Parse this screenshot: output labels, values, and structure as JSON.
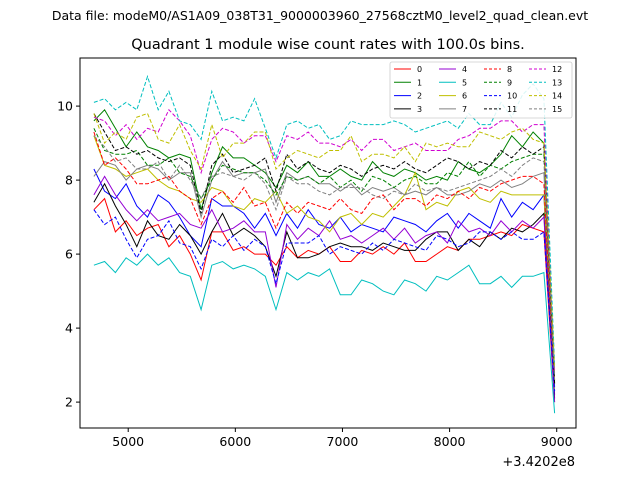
{
  "suptitle": "Data file: modeM0/AS1A09_038T31_9000003960_27568cztM0_level2_quad_clean.evt",
  "chart_data": {
    "type": "line",
    "title": "Quadrant 1 module wise count rates with 100.0s bins.",
    "xlabel": "",
    "ylabel": "",
    "x_offset_label": "+3.4202e8",
    "xlim": [
      4550,
      9180
    ],
    "ylim": [
      1.3,
      11.3
    ],
    "xticks": [
      5000,
      6000,
      7000,
      8000,
      9000
    ],
    "yticks": [
      2,
      4,
      6,
      8,
      10
    ],
    "grid": false,
    "legend_placement": "top-right",
    "x": [
      4680,
      4780,
      4880,
      4980,
      5080,
      5180,
      5280,
      5380,
      5480,
      5580,
      5680,
      5780,
      5880,
      5980,
      6080,
      6180,
      6280,
      6380,
      6480,
      6580,
      6680,
      6780,
      6880,
      6980,
      7080,
      7180,
      7280,
      7380,
      7480,
      7580,
      7680,
      7780,
      7880,
      7980,
      8080,
      8180,
      8280,
      8380,
      8480,
      8580,
      8680,
      8780,
      8880,
      8980
    ],
    "series": [
      {
        "name": "0",
        "color": "#ff0000",
        "dash": false,
        "values": [
          7.2,
          7.5,
          6.6,
          6.9,
          6.5,
          6.7,
          6.8,
          6.2,
          6.5,
          6.0,
          5.3,
          6.6,
          6.6,
          6.1,
          6.2,
          6.0,
          6.0,
          5.7,
          6.2,
          5.9,
          6.1,
          6.0,
          6.2,
          5.8,
          5.8,
          6.1,
          6.0,
          6.2,
          6.0,
          6.3,
          5.8,
          5.8,
          6.0,
          6.2,
          6.1,
          6.4,
          6.4,
          6.5,
          6.6,
          6.5,
          6.8,
          6.7,
          6.6,
          2.0
        ]
      },
      {
        "name": "1",
        "color": "#008000",
        "dash": false,
        "values": [
          9.6,
          9.9,
          9.4,
          8.9,
          9.3,
          8.9,
          8.8,
          8.6,
          8.7,
          8.6,
          7.2,
          8.2,
          8.9,
          8.6,
          8.6,
          8.4,
          8.2,
          7.8,
          8.4,
          8.2,
          8.5,
          8.1,
          8.1,
          8.3,
          8.1,
          8.0,
          8.5,
          8.2,
          8.1,
          8.3,
          8.2,
          8.0,
          8.1,
          8.0,
          8.5,
          8.3,
          8.2,
          8.4,
          8.7,
          9.2,
          8.9,
          9.3,
          9.0,
          2.4
        ]
      },
      {
        "name": "2",
        "color": "#0000ff",
        "dash": false,
        "values": [
          8.3,
          7.7,
          7.5,
          7.9,
          7.3,
          7.0,
          7.6,
          7.4,
          7.0,
          6.5,
          6.2,
          7.5,
          7.3,
          7.3,
          7.1,
          6.7,
          7.1,
          6.5,
          7.1,
          6.7,
          7.2,
          6.8,
          6.7,
          7.0,
          6.6,
          6.8,
          6.7,
          6.6,
          7.0,
          6.9,
          6.8,
          6.6,
          6.9,
          7.1,
          6.7,
          7.1,
          6.9,
          6.7,
          7.5,
          7.0,
          7.4,
          7.2,
          7.6,
          2.2
        ]
      },
      {
        "name": "3",
        "color": "#000000",
        "dash": false,
        "values": [
          7.4,
          7.9,
          7.3,
          6.8,
          6.2,
          6.9,
          6.5,
          6.4,
          6.8,
          6.5,
          6.0,
          6.6,
          7.1,
          6.5,
          6.7,
          6.5,
          6.2,
          5.4,
          6.6,
          5.9,
          5.9,
          6.0,
          6.2,
          6.3,
          6.2,
          6.2,
          6.1,
          6.3,
          6.2,
          6.1,
          6.1,
          6.4,
          6.6,
          6.6,
          6.1,
          6.4,
          6.2,
          6.6,
          6.4,
          6.7,
          6.6,
          6.8,
          7.1,
          2.1
        ]
      },
      {
        "name": "4",
        "color": "#9400d3",
        "dash": false,
        "values": [
          7.6,
          8.1,
          7.6,
          7.2,
          6.9,
          7.2,
          6.9,
          7.0,
          7.1,
          6.8,
          6.7,
          7.2,
          6.6,
          6.7,
          6.9,
          6.6,
          6.6,
          5.1,
          6.8,
          6.4,
          6.7,
          6.5,
          6.9,
          6.4,
          6.5,
          6.3,
          6.5,
          6.7,
          6.4,
          6.7,
          6.3,
          6.5,
          6.6,
          6.3,
          6.9,
          6.6,
          6.7,
          6.5,
          6.9,
          6.6,
          6.9,
          6.7,
          7.0,
          2.0
        ]
      },
      {
        "name": "5",
        "color": "#00bfbf",
        "dash": false,
        "values": [
          5.7,
          5.8,
          5.5,
          5.9,
          5.7,
          6.0,
          5.7,
          5.9,
          5.5,
          5.4,
          4.5,
          5.7,
          5.8,
          5.6,
          5.7,
          5.6,
          5.4,
          4.5,
          5.5,
          5.3,
          5.5,
          5.4,
          5.6,
          4.9,
          4.9,
          5.3,
          5.2,
          5.0,
          4.9,
          5.3,
          5.2,
          5.0,
          5.4,
          5.3,
          5.5,
          5.7,
          5.2,
          5.2,
          5.4,
          5.1,
          5.4,
          5.4,
          5.5,
          1.7
        ]
      },
      {
        "name": "6",
        "color": "#bfbf00",
        "dash": false,
        "values": [
          9.2,
          8.4,
          8.3,
          8.1,
          8.2,
          8.3,
          8.0,
          7.8,
          7.7,
          7.5,
          7.4,
          7.8,
          7.7,
          7.3,
          7.2,
          7.5,
          7.4,
          7.7,
          7.1,
          7.3,
          7.0,
          6.9,
          6.6,
          7.0,
          7.1,
          6.8,
          7.1,
          7.0,
          7.3,
          7.6,
          8.2,
          7.2,
          7.4,
          7.3,
          7.7,
          7.8,
          7.5,
          7.4,
          7.7,
          7.6,
          7.6,
          7.6,
          7.6,
          2.6
        ]
      },
      {
        "name": "7",
        "color": "#808080",
        "dash": false,
        "values": [
          8.1,
          8.5,
          8.4,
          8.0,
          8.3,
          8.4,
          8.3,
          8.0,
          8.2,
          8.2,
          7.0,
          8.0,
          8.5,
          8.1,
          8.2,
          8.2,
          8.3,
          7.4,
          8.2,
          8.0,
          8.1,
          7.9,
          7.9,
          7.7,
          7.9,
          7.6,
          7.8,
          7.7,
          7.8,
          7.6,
          7.7,
          7.6,
          7.8,
          7.6,
          7.6,
          7.7,
          7.9,
          7.8,
          8.0,
          7.8,
          7.9,
          8.1,
          8.2,
          2.3
        ]
      },
      {
        "name": "8",
        "color": "#ff0000",
        "dash": true,
        "values": [
          9.3,
          8.4,
          8.6,
          8.3,
          7.9,
          7.9,
          8.0,
          8.1,
          7.7,
          7.5,
          6.8,
          7.5,
          7.7,
          7.4,
          7.8,
          7.3,
          7.4,
          6.7,
          7.4,
          7.1,
          7.4,
          7.3,
          7.2,
          7.5,
          7.2,
          7.1,
          7.5,
          7.6,
          7.2,
          7.5,
          7.5,
          7.3,
          7.6,
          7.5,
          7.7,
          7.5,
          7.8,
          7.7,
          7.9,
          8.0,
          8.1,
          8.1,
          7.9,
          2.5
        ]
      },
      {
        "name": "9",
        "color": "#008000",
        "dash": true,
        "values": [
          9.4,
          8.8,
          8.7,
          8.7,
          8.8,
          8.4,
          8.4,
          8.6,
          8.2,
          8.1,
          7.5,
          8.0,
          8.4,
          8.3,
          8.2,
          8.2,
          8.0,
          7.6,
          8.1,
          8.0,
          8.1,
          7.9,
          8.1,
          7.8,
          8.0,
          7.7,
          8.1,
          8.0,
          7.8,
          8.0,
          8.1,
          7.9,
          7.9,
          8.2,
          8.1,
          8.5,
          8.1,
          8.4,
          8.3,
          8.5,
          8.6,
          8.7,
          8.7,
          2.7
        ]
      },
      {
        "name": "10",
        "color": "#0000ff",
        "dash": true,
        "values": [
          7.2,
          6.8,
          7.0,
          6.4,
          5.9,
          6.4,
          6.5,
          6.9,
          6.3,
          6.2,
          5.6,
          6.4,
          6.2,
          6.5,
          6.1,
          6.4,
          6.2,
          5.2,
          6.3,
          6.3,
          6.3,
          6.5,
          6.0,
          6.2,
          6.1,
          6.0,
          6.3,
          6.1,
          6.4,
          6.3,
          6.2,
          6.1,
          6.5,
          6.4,
          6.2,
          6.3,
          6.6,
          6.6,
          6.4,
          6.6,
          6.4,
          6.4,
          6.6,
          2.3
        ]
      },
      {
        "name": "11",
        "color": "#000000",
        "dash": true,
        "values": [
          9.8,
          9.3,
          8.8,
          8.9,
          8.7,
          8.8,
          8.6,
          8.5,
          8.6,
          8.4,
          7.1,
          8.4,
          8.7,
          8.2,
          8.3,
          8.4,
          8.6,
          7.7,
          8.7,
          8.3,
          8.5,
          8.3,
          8.2,
          8.4,
          8.3,
          8.1,
          8.3,
          8.4,
          8.3,
          8.5,
          8.3,
          8.2,
          8.4,
          8.6,
          8.5,
          8.3,
          8.5,
          8.4,
          8.8,
          8.6,
          8.9,
          8.7,
          8.9,
          2.5
        ]
      },
      {
        "name": "12",
        "color": "#d000d0",
        "dash": true,
        "values": [
          9.7,
          9.6,
          9.2,
          9.5,
          9.1,
          9.4,
          9.3,
          9.9,
          9.6,
          9.2,
          8.2,
          9.1,
          9.4,
          9.3,
          9.0,
          9.2,
          9.2,
          8.5,
          9.2,
          9.1,
          9.3,
          9.0,
          9.0,
          8.9,
          9.1,
          8.8,
          9.1,
          9.1,
          8.8,
          8.9,
          9.0,
          8.8,
          8.8,
          8.8,
          9.1,
          9.2,
          9.4,
          9.4,
          9.6,
          9.6,
          9.3,
          9.5,
          9.5,
          2.8
        ]
      },
      {
        "name": "13",
        "color": "#00bfbf",
        "dash": true,
        "values": [
          10.1,
          10.2,
          9.9,
          10.1,
          9.9,
          10.8,
          9.9,
          10.4,
          9.6,
          9.5,
          9.1,
          10.4,
          9.6,
          9.7,
          9.6,
          10.2,
          9.4,
          8.6,
          9.5,
          9.6,
          9.4,
          9.5,
          9.1,
          9.2,
          9.6,
          9.5,
          9.5,
          9.5,
          9.6,
          9.5,
          9.3,
          9.4,
          9.5,
          9.6,
          9.4,
          9.8,
          9.5,
          9.5,
          10.1,
          9.7,
          10.3,
          10.6,
          10.2,
          3.0
        ]
      },
      {
        "name": "14",
        "color": "#bfbf00",
        "dash": true,
        "values": [
          9.8,
          9.0,
          9.3,
          9.1,
          9.7,
          9.8,
          9.1,
          9.0,
          9.5,
          8.8,
          8.3,
          9.5,
          8.6,
          9.0,
          9.0,
          9.3,
          9.3,
          8.3,
          8.6,
          8.8,
          8.7,
          8.6,
          8.8,
          8.8,
          9.2,
          8.5,
          8.7,
          8.7,
          8.6,
          8.9,
          8.5,
          9.0,
          8.9,
          9.0,
          8.9,
          8.9,
          9.3,
          9.2,
          9.1,
          9.3,
          9.4,
          9.1,
          9.0,
          2.9
        ]
      },
      {
        "name": "15",
        "color": "#808080",
        "dash": true,
        "values": [
          9.2,
          8.9,
          8.5,
          8.6,
          8.3,
          8.3,
          8.5,
          8.0,
          8.4,
          8.0,
          7.5,
          8.1,
          8.2,
          8.1,
          8.0,
          8.2,
          7.9,
          7.2,
          8.1,
          7.9,
          7.9,
          7.7,
          7.6,
          7.8,
          7.8,
          7.8,
          7.6,
          7.5,
          7.7,
          7.6,
          7.9,
          7.7,
          7.8,
          7.7,
          7.8,
          7.9,
          8.0,
          8.1,
          8.3,
          8.1,
          8.4,
          8.6,
          8.5,
          2.6
        ]
      }
    ]
  }
}
